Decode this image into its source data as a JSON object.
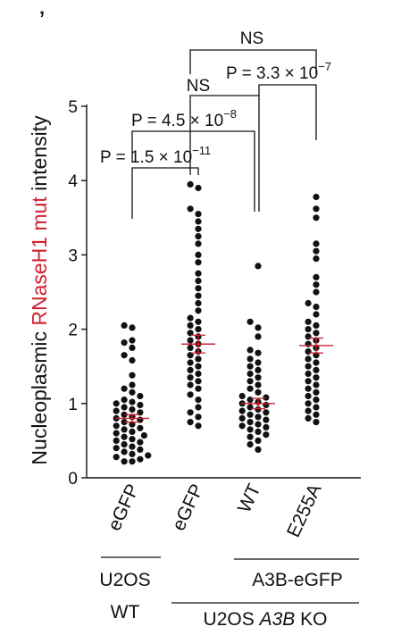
{
  "panel_mark": "ʼ",
  "chart_data": {
    "type": "scatter",
    "subtype": "beeswarm dot plot with mean ± s.e.m.",
    "ylabel": {
      "parts": [
        {
          "text": "Nucleoplasmic ",
          "color": "#111111"
        },
        {
          "text": "RNaseH1 mut",
          "color": "#d1202f"
        },
        {
          "text": " intensity",
          "color": "#111111"
        }
      ]
    },
    "ylim": [
      0,
      5
    ],
    "yticks": [
      "0",
      "1",
      "2",
      "3",
      "4",
      "5"
    ],
    "categories": [
      "eGFP",
      "eGFP",
      "WT",
      "E255A"
    ],
    "group_labels": {
      "u2os_wt": [
        "U2OS",
        "WT"
      ],
      "a3b": "A3B-eGFP",
      "ko_prefix": "U2OS ",
      "ko_italic": "A3B",
      "ko_suffix": " KO"
    },
    "groups": [
      {
        "name": "U2OS WT eGFP",
        "mean": 0.8,
        "sem": 0.05,
        "values": [
          0.22,
          0.22,
          0.25,
          0.28,
          0.3,
          0.32,
          0.35,
          0.38,
          0.4,
          0.42,
          0.45,
          0.48,
          0.5,
          0.52,
          0.55,
          0.57,
          0.6,
          0.62,
          0.65,
          0.67,
          0.7,
          0.72,
          0.75,
          0.78,
          0.8,
          0.82,
          0.85,
          0.88,
          0.9,
          0.92,
          0.95,
          0.98,
          1.0,
          1.02,
          1.05,
          1.1,
          1.15,
          1.2,
          1.25,
          1.38,
          1.58,
          1.65,
          1.75,
          1.82,
          1.85,
          2.02,
          2.05
        ]
      },
      {
        "name": "U2OS A3B KO eGFP",
        "mean": 1.8,
        "sem": 0.12,
        "values": [
          0.7,
          0.75,
          0.82,
          0.88,
          0.95,
          1.05,
          1.12,
          1.2,
          1.25,
          1.3,
          1.35,
          1.4,
          1.45,
          1.5,
          1.55,
          1.6,
          1.65,
          1.7,
          1.75,
          1.8,
          1.85,
          1.9,
          1.95,
          2.0,
          2.05,
          2.1,
          2.15,
          2.25,
          2.35,
          2.45,
          2.55,
          2.65,
          2.75,
          2.9,
          3.0,
          3.15,
          3.25,
          3.35,
          3.45,
          3.55,
          3.62,
          3.9,
          3.95
        ]
      },
      {
        "name": "U2OS A3B KO A3B-eGFP WT",
        "mean": 1.0,
        "sem": 0.07,
        "values": [
          0.38,
          0.45,
          0.5,
          0.55,
          0.58,
          0.62,
          0.65,
          0.68,
          0.7,
          0.72,
          0.75,
          0.78,
          0.8,
          0.82,
          0.85,
          0.88,
          0.9,
          0.92,
          0.95,
          0.98,
          1.0,
          1.02,
          1.05,
          1.08,
          1.1,
          1.15,
          1.2,
          1.25,
          1.3,
          1.35,
          1.4,
          1.45,
          1.5,
          1.55,
          1.6,
          1.68,
          1.72,
          1.9,
          2.02,
          2.1,
          2.85
        ]
      },
      {
        "name": "U2OS A3B KO A3B-eGFP E255A",
        "mean": 1.78,
        "sem": 0.1,
        "values": [
          0.75,
          0.8,
          0.85,
          0.9,
          0.95,
          1.0,
          1.05,
          1.1,
          1.15,
          1.2,
          1.25,
          1.3,
          1.35,
          1.4,
          1.45,
          1.5,
          1.55,
          1.6,
          1.65,
          1.7,
          1.75,
          1.8,
          1.85,
          1.9,
          1.95,
          2.0,
          2.05,
          2.1,
          2.2,
          2.3,
          2.35,
          2.5,
          2.6,
          2.7,
          2.95,
          3.05,
          3.15,
          3.5,
          3.62,
          3.78
        ]
      }
    ],
    "annotations": [
      {
        "between": [
          1,
          2
        ],
        "label": "P = 1.5 × 10",
        "exponent": "−11"
      },
      {
        "between": [
          1,
          3
        ],
        "label": "P = 4.5 × 10",
        "exponent": "−8"
      },
      {
        "between": [
          2,
          3
        ],
        "label": "NS",
        "exponent": ""
      },
      {
        "between": [
          3,
          4
        ],
        "label": "P = 3.3 × 10",
        "exponent": "−7"
      },
      {
        "between": [
          2,
          4
        ],
        "label": "NS",
        "exponent": ""
      }
    ],
    "colors": {
      "dots": "#111111",
      "mean": "#d1202f",
      "highlight": "#d1202f"
    },
    "grid": false,
    "legend": "none"
  }
}
